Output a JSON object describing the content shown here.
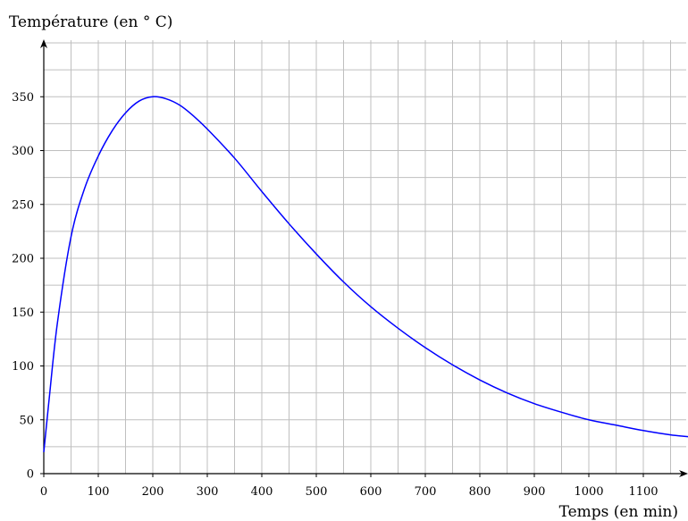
{
  "chart_data": {
    "type": "line",
    "ylabel": "Température (en ° C)",
    "xlabel": "Temps (en min)",
    "xlim": [
      0,
      1190
    ],
    "ylim": [
      0,
      400
    ],
    "grid": true,
    "grid_step_x": 50,
    "grid_step_y": 25,
    "x_ticks": [
      0,
      100,
      200,
      300,
      400,
      500,
      600,
      700,
      800,
      900,
      1000,
      1100
    ],
    "y_ticks": [
      0,
      50,
      100,
      150,
      200,
      250,
      300,
      350
    ],
    "curve_color": "#0000ff",
    "series": [
      {
        "x": [
          0,
          10,
          25,
          50,
          75,
          100,
          125,
          150,
          175,
          200,
          225,
          250,
          275,
          300,
          350,
          400,
          450,
          500,
          550,
          600,
          650,
          700,
          750,
          800,
          850,
          900,
          950,
          1000,
          1050,
          1100,
          1150,
          1190
        ],
        "values": [
          20,
          70,
          140,
          220,
          265,
          295,
          318,
          335,
          346,
          350,
          348,
          342,
          332,
          320,
          293,
          262,
          232,
          204,
          178,
          155,
          135,
          117,
          101,
          87,
          75,
          65,
          57,
          50,
          45,
          40,
          36,
          34
        ]
      }
    ]
  }
}
